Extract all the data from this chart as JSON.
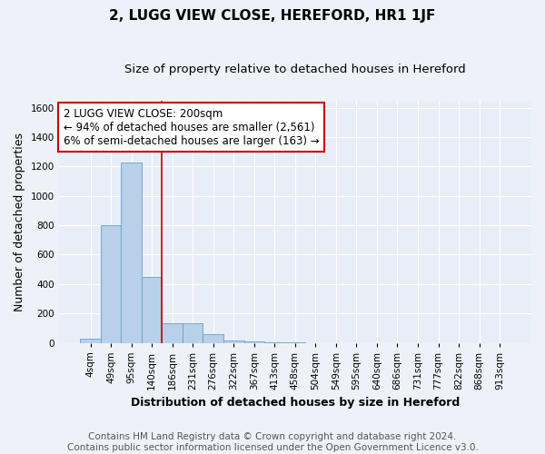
{
  "title": "2, LUGG VIEW CLOSE, HEREFORD, HR1 1JF",
  "subtitle": "Size of property relative to detached houses in Hereford",
  "xlabel": "Distribution of detached houses by size in Hereford",
  "ylabel": "Number of detached properties",
  "footer_line1": "Contains HM Land Registry data © Crown copyright and database right 2024.",
  "footer_line2": "Contains public sector information licensed under the Open Government Licence v3.0.",
  "bar_labels": [
    "4sqm",
    "49sqm",
    "95sqm",
    "140sqm",
    "186sqm",
    "231sqm",
    "276sqm",
    "322sqm",
    "367sqm",
    "413sqm",
    "458sqm",
    "504sqm",
    "549sqm",
    "595sqm",
    "640sqm",
    "686sqm",
    "731sqm",
    "777sqm",
    "822sqm",
    "868sqm",
    "913sqm"
  ],
  "bar_values": [
    25,
    800,
    1230,
    450,
    130,
    130,
    60,
    15,
    10,
    5,
    5,
    0,
    0,
    0,
    0,
    0,
    0,
    0,
    0,
    0,
    0
  ],
  "bar_color": "#b8d0ea",
  "bar_edge_color": "#6aa0c8",
  "red_line_x": 3.5,
  "red_line_color": "#cc0000",
  "annotation_text": "2 LUGG VIEW CLOSE: 200sqm\n← 94% of detached houses are smaller (2,561)\n6% of semi-detached houses are larger (163) →",
  "annotation_box_color": "#ffffff",
  "annotation_box_edge": "#cc0000",
  "ylim": [
    0,
    1650
  ],
  "yticks": [
    0,
    200,
    400,
    600,
    800,
    1000,
    1200,
    1400,
    1600
  ],
  "bg_color": "#e8eef8",
  "grid_color": "#ffffff",
  "title_fontsize": 11,
  "subtitle_fontsize": 9.5,
  "axis_label_fontsize": 9,
  "tick_fontsize": 7.5,
  "annotation_fontsize": 8.5,
  "footer_fontsize": 7.5
}
